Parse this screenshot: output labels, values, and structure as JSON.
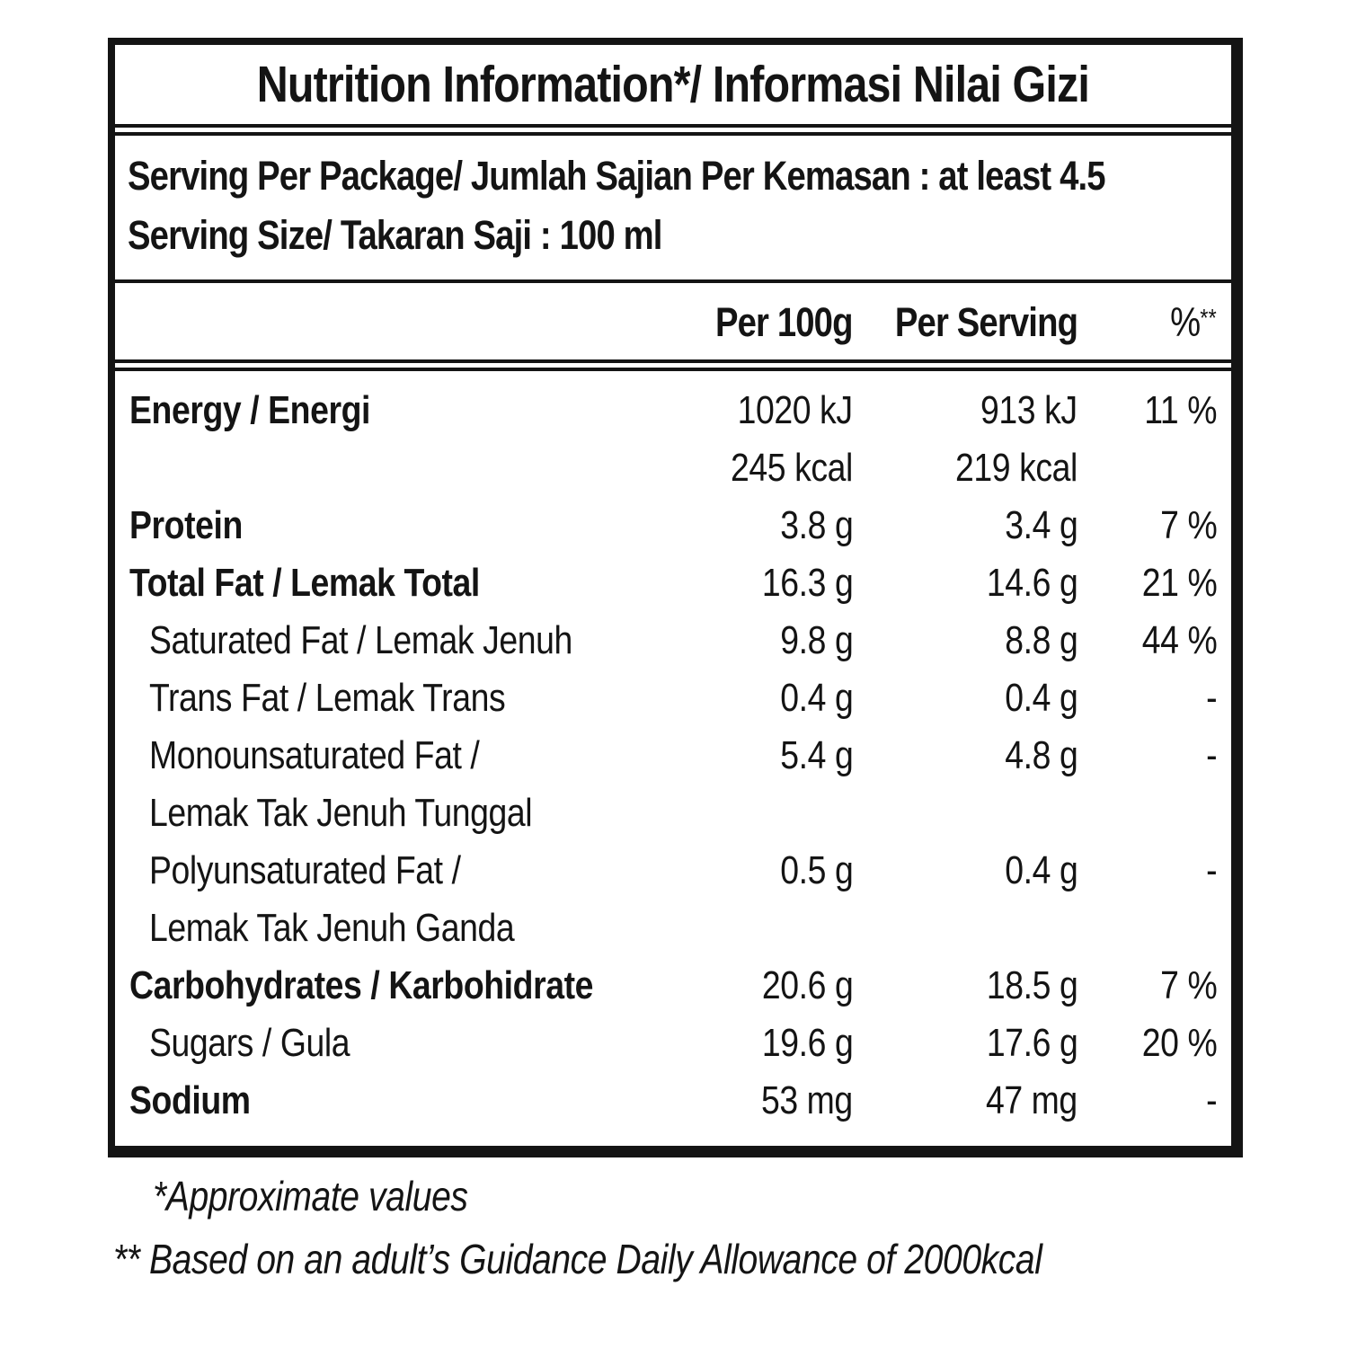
{
  "label": {
    "title": "Nutrition Information*/ Informasi Nilai Gizi",
    "serving_lines": [
      "Serving Per Package/ Jumlah Sajian Per Kemasan : at least 4.5",
      "Serving Size/ Takaran Saji : 100 ml"
    ],
    "columns": {
      "per_100g": "Per 100g",
      "per_serving": "Per Serving",
      "percent_base": "%",
      "percent_sup": "**"
    },
    "rows": [
      {
        "label": "Energy / Energi",
        "per_100g": "1020 kJ",
        "per_serving": "913 kJ",
        "percent": "11 %",
        "emphasis": true,
        "indent": false
      },
      {
        "label": "",
        "per_100g": "245 kcal",
        "per_serving": "219 kcal",
        "percent": "",
        "emphasis": false,
        "indent": false
      },
      {
        "label": "Protein",
        "per_100g": "3.8 g",
        "per_serving": "3.4 g",
        "percent": "7 %",
        "emphasis": true,
        "indent": false
      },
      {
        "label": "Total Fat / Lemak Total",
        "per_100g": "16.3 g",
        "per_serving": "14.6 g",
        "percent": "21 %",
        "emphasis": true,
        "indent": false
      },
      {
        "label": "Saturated Fat / Lemak Jenuh",
        "per_100g": "9.8 g",
        "per_serving": "8.8 g",
        "percent": "44 %",
        "emphasis": false,
        "indent": true
      },
      {
        "label": "Trans Fat / Lemak Trans",
        "per_100g": "0.4 g",
        "per_serving": "0.4 g",
        "percent": "-",
        "emphasis": false,
        "indent": true
      },
      {
        "label": "Monounsaturated Fat /",
        "per_100g": "5.4 g",
        "per_serving": "4.8 g",
        "percent": "-",
        "emphasis": false,
        "indent": true
      },
      {
        "label": "Lemak Tak Jenuh Tunggal",
        "per_100g": "",
        "per_serving": "",
        "percent": "",
        "emphasis": false,
        "indent": true
      },
      {
        "label": "Polyunsaturated Fat /",
        "per_100g": "0.5 g",
        "per_serving": "0.4 g",
        "percent": "-",
        "emphasis": false,
        "indent": true
      },
      {
        "label": "Lemak Tak Jenuh Ganda",
        "per_100g": "",
        "per_serving": "",
        "percent": "",
        "emphasis": false,
        "indent": true
      },
      {
        "label": "Carbohydrates / Karbohidrate",
        "per_100g": "20.6 g",
        "per_serving": "18.5 g",
        "percent": "7 %",
        "emphasis": true,
        "indent": false
      },
      {
        "label": "Sugars / Gula",
        "per_100g": "19.6 g",
        "per_serving": "17.6 g",
        "percent": "20 %",
        "emphasis": false,
        "indent": true
      },
      {
        "label": "Sodium",
        "per_100g": "53 mg",
        "per_serving": "47 mg",
        "percent": "-",
        "emphasis": true,
        "indent": false
      }
    ],
    "footnotes": [
      "*Approximate values",
      "** Based on an adult’s Guidance Daily Allowance of 2000kcal"
    ],
    "colors": {
      "text": "#141414",
      "border": "#141414",
      "background": "#ffffff"
    }
  }
}
